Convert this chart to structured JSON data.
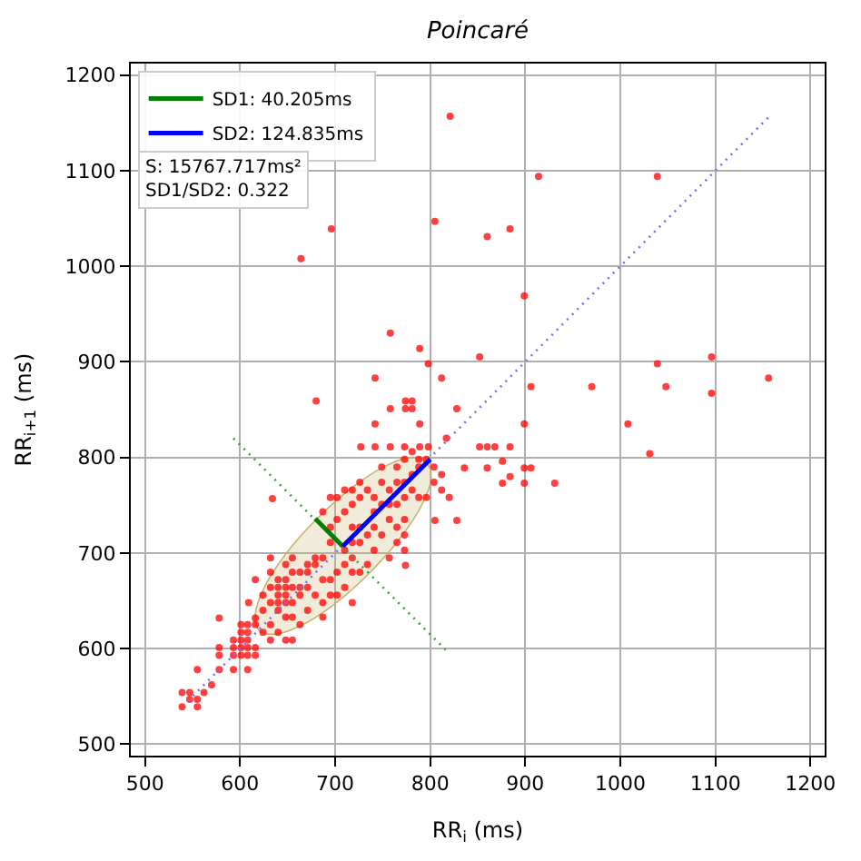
{
  "chart_data": {
    "type": "scatter",
    "title": "Poincaré",
    "xlabel": "RR$_{i}$ (ms)",
    "ylabel": "RR$_{i+1}$ (ms)",
    "xlim": [
      485,
      1215
    ],
    "ylim": [
      488,
      1212
    ],
    "xticks": [
      500,
      600,
      700,
      800,
      900,
      1000,
      1100,
      1200
    ],
    "yticks": [
      500,
      600,
      700,
      800,
      900,
      1000,
      1100,
      1200
    ],
    "grid": true,
    "legend": "top left",
    "annotations": [
      "S: 15767.717ms²",
      "SD1/SD2: 0.322"
    ],
    "series": [
      {
        "type": "area",
        "color": "#c9b26b",
        "x": [
          796,
          779,
          751,
          716,
          680,
          648,
          626,
          616,
          620,
          637,
          666,
          700,
          736,
          768,
          791,
          801,
          796
        ],
        "values": [
          795,
          800,
          790,
          767,
          735,
          699,
          665,
          636,
          619,
          615,
          625,
          647,
          679,
          715,
          750,
          778,
          795
        ]
      },
      {
        "color": "#ff0000",
        "marker": "circle",
        "x": [
          539,
          547,
          539,
          555,
          547,
          555,
          562,
          570,
          555,
          578,
          578,
          578,
          578,
          593,
          593,
          593,
          601,
          601,
          601,
          608,
          608,
          608,
          616,
          616,
          608,
          593,
          601,
          608,
          616,
          601,
          608,
          624,
          632,
          616,
          624,
          640,
          632,
          640,
          648,
          655,
          640,
          648,
          632,
          640,
          648,
          655,
          663,
          640,
          648,
          632,
          655,
          663,
          671,
          648,
          671,
          679,
          655,
          679,
          687,
          632,
          663,
          671,
          679,
          687,
          695,
          687,
          695,
          702,
          710,
          718,
          718,
          710,
          718,
          726,
          734,
          718,
          726,
          741,
          749,
          757,
          765,
          773,
          741,
          749,
          757,
          765,
          773,
          781,
          788,
          796,
          765,
          773,
          781,
          788,
          796,
          757,
          749,
          741,
          726,
          718,
          710,
          702,
          695,
          695,
          687,
          695,
          702,
          710,
          718,
          726,
          734,
          749,
          765,
          773,
          781,
          788,
          804,
          812,
          804,
          812,
          820,
          655,
          655,
          648,
          640,
          632,
          616,
          609,
          624,
          773,
          773,
          765,
          757,
          741,
          734,
          726,
          710,
          702,
          718,
          687,
          671,
          663,
          648,
          805,
          828,
          774,
          634,
          821,
          914,
          1039,
          805,
          860,
          884,
          696,
          664,
          899,
          758,
          789,
          798,
          852,
          742,
          812,
          680,
          906,
          970,
          1039,
          1048,
          1096,
          1096,
          1156,
          1008,
          1031,
          758,
          774,
          781,
          774,
          781,
          789,
          828,
          899,
          817,
          742,
          727,
          742,
          758,
          773,
          789,
          798,
          852,
          860,
          868,
          884,
          836,
          860,
          876,
          884,
          899,
          906,
          931,
          876,
          899
        ],
        "values": [
          554,
          554,
          539,
          547,
          547,
          539,
          554,
          562,
          578,
          578,
          593,
          601,
          632,
          609,
          601,
          593,
          609,
          601,
          593,
          609,
          601,
          593,
          601,
          593,
          578,
          578,
          625,
          625,
          625,
          617,
          617,
          617,
          625,
          632,
          640,
          640,
          648,
          648,
          648,
          648,
          656,
          656,
          664,
          664,
          664,
          664,
          664,
          672,
          672,
          680,
          680,
          680,
          680,
          688,
          688,
          688,
          695,
          695,
          695,
          695,
          656,
          664,
          656,
          648,
          656,
          672,
          672,
          680,
          688,
          680,
          695,
          703,
          711,
          711,
          719,
          727,
          727,
          727,
          719,
          735,
          727,
          735,
          743,
          751,
          751,
          751,
          758,
          766,
          758,
          758,
          774,
          774,
          782,
          790,
          798,
          766,
          774,
          758,
          758,
          751,
          743,
          735,
          727,
          711,
          743,
          758,
          758,
          766,
          766,
          774,
          766,
          790,
          790,
          798,
          806,
          798,
          790,
          782,
          774,
          766,
          758,
          633,
          609,
          609,
          617,
          609,
          672,
          648,
          656,
          703,
          719,
          711,
          695,
          703,
          688,
          680,
          664,
          656,
          648,
          633,
          640,
          625,
          633,
          734,
          734,
          687,
          757,
          1157,
          1094,
          1094,
          1047,
          1031,
          1039,
          1039,
          1008,
          969,
          930,
          914,
          898,
          905,
          883,
          883,
          859,
          874,
          874,
          898,
          874,
          905,
          867,
          883,
          835,
          804,
          851,
          859,
          859,
          851,
          851,
          835,
          851,
          835,
          820,
          835,
          811,
          811,
          811,
          811,
          811,
          811,
          811,
          811,
          811,
          811,
          789,
          789,
          796,
          780,
          789,
          789,
          773,
          773,
          773
        ]
      },
      {
        "type": "line",
        "color": "#7070ff",
        "line_style": "dotted",
        "x": [
          545,
          1157
        ],
        "values": [
          545,
          1157
        ]
      },
      {
        "type": "line",
        "color": "#3aa03a",
        "line_style": "dotted",
        "x": [
          593,
          820
        ],
        "values": [
          820,
          595
        ]
      },
      {
        "type": "line",
        "name": "SD1: 40.205ms",
        "color": "#008000",
        "line_style": "solid",
        "x": [
          708,
          679
        ],
        "values": [
          707,
          736
        ]
      },
      {
        "type": "line",
        "name": "SD2: 124.835ms",
        "color": "#0000ff",
        "line_style": "solid",
        "x": [
          708,
          800
        ],
        "values": [
          707,
          798
        ]
      }
    ]
  }
}
